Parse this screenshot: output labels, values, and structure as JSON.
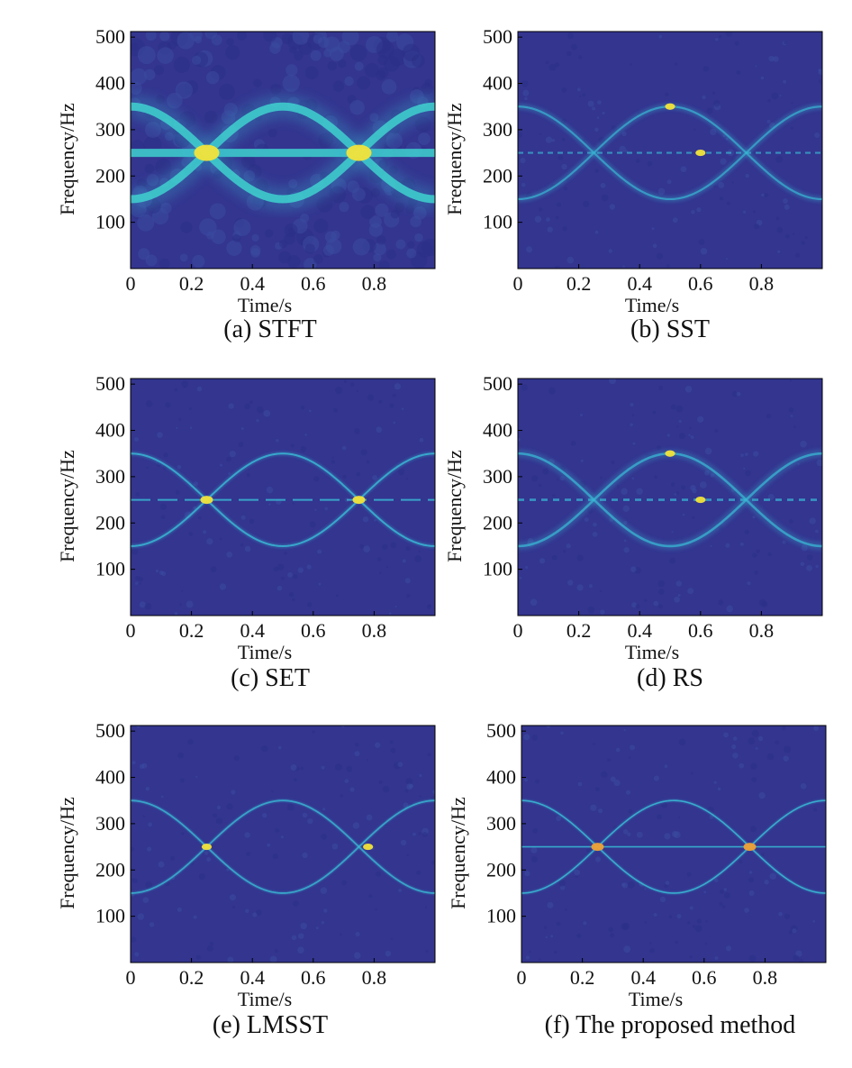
{
  "figure": {
    "panels": [
      {
        "id": "a",
        "caption": "(a) STFT"
      },
      {
        "id": "b",
        "caption": "(b) SST"
      },
      {
        "id": "c",
        "caption": "(c) SET"
      },
      {
        "id": "d",
        "caption": "(d) RS"
      },
      {
        "id": "e",
        "caption": "(e) LMSST"
      },
      {
        "id": "f",
        "caption": "(f) The proposed  method"
      }
    ]
  },
  "colors": {
    "background": "#33358f",
    "ridge": "#39b6d3",
    "ridge_strong": "#3fd2cf",
    "peak": "#f2e33a",
    "peak_orange": "#f0a035"
  },
  "chart_data": [
    {
      "type": "heatmap",
      "title": "(a) STFT",
      "xlabel": "Time/s",
      "ylabel": "Frequency/Hz",
      "xlim": [
        0,
        1
      ],
      "ylim": [
        0,
        512
      ],
      "xticks": [
        0,
        0.2,
        0.4,
        0.6,
        0.8
      ],
      "yticks": [
        100,
        200,
        300,
        400,
        500
      ],
      "xtick_labels": [
        "0",
        "0.2",
        "0.4",
        "0.6",
        "0.8"
      ],
      "ytick_labels": [
        "100",
        "200",
        "300",
        "400",
        "500"
      ],
      "components": [
        {
          "name": "constant",
          "frequency_hz": 250
        },
        {
          "name": "sinusoidal-1",
          "formula": "250 - 100*cos(2*pi*t)"
        },
        {
          "name": "sinusoidal-2",
          "formula": "250 + 100*cos(2*pi*t)"
        }
      ],
      "peaks": [
        {
          "t": 0.25,
          "f": 250
        },
        {
          "t": 0.75,
          "f": 250
        }
      ]
    },
    {
      "type": "heatmap",
      "title": "(b) SST",
      "xlabel": "Time/s",
      "ylabel": "Frequency/Hz",
      "xlim": [
        0,
        1
      ],
      "ylim": [
        0,
        512
      ],
      "xticks": [
        0,
        0.2,
        0.4,
        0.6,
        0.8
      ],
      "yticks": [
        100,
        200,
        300,
        400,
        500
      ],
      "xtick_labels": [
        "0",
        "0.2",
        "0.4",
        "0.6",
        "0.8"
      ],
      "ytick_labels": [
        "100",
        "200",
        "300",
        "400",
        "500"
      ],
      "components": [
        {
          "name": "constant",
          "frequency_hz": 250
        },
        {
          "name": "sinusoidal-1",
          "formula": "250 - 100*cos(2*pi*t)"
        },
        {
          "name": "sinusoidal-2",
          "formula": "250 + 100*cos(2*pi*t)"
        }
      ],
      "peaks": [
        {
          "t": 0.5,
          "f": 350
        },
        {
          "t": 0.6,
          "f": 250
        }
      ]
    },
    {
      "type": "heatmap",
      "title": "(c) SET",
      "xlabel": "Time/s",
      "ylabel": "Frequency/Hz",
      "xlim": [
        0,
        1
      ],
      "ylim": [
        0,
        512
      ],
      "xticks": [
        0,
        0.2,
        0.4,
        0.6,
        0.8
      ],
      "yticks": [
        100,
        200,
        300,
        400,
        500
      ],
      "xtick_labels": [
        "0",
        "0.2",
        "0.4",
        "0.6",
        "0.8"
      ],
      "ytick_labels": [
        "100",
        "200",
        "300",
        "400",
        "500"
      ],
      "components": [
        {
          "name": "constant",
          "frequency_hz": 250
        },
        {
          "name": "sinusoidal-1",
          "formula": "250 - 100*cos(2*pi*t)"
        },
        {
          "name": "sinusoidal-2",
          "formula": "250 + 100*cos(2*pi*t)"
        }
      ],
      "peaks": [
        {
          "t": 0.25,
          "f": 250
        },
        {
          "t": 0.75,
          "f": 250
        }
      ]
    },
    {
      "type": "heatmap",
      "title": "(d) RS",
      "xlabel": "Time/s",
      "ylabel": "Frequency/Hz",
      "xlim": [
        0,
        1
      ],
      "ylim": [
        0,
        512
      ],
      "xticks": [
        0,
        0.2,
        0.4,
        0.6,
        0.8
      ],
      "yticks": [
        100,
        200,
        300,
        400,
        500
      ],
      "xtick_labels": [
        "0",
        "0.2",
        "0.4",
        "0.6",
        "0.8"
      ],
      "ytick_labels": [
        "100",
        "200",
        "300",
        "400",
        "500"
      ],
      "components": [
        {
          "name": "constant",
          "frequency_hz": 250
        },
        {
          "name": "sinusoidal-1",
          "formula": "250 - 100*cos(2*pi*t)"
        },
        {
          "name": "sinusoidal-2",
          "formula": "250 + 100*cos(2*pi*t)"
        }
      ],
      "peaks": [
        {
          "t": 0.5,
          "f": 350
        },
        {
          "t": 0.6,
          "f": 250
        }
      ]
    },
    {
      "type": "heatmap",
      "title": "(e) LMSST",
      "xlabel": "Time/s",
      "ylabel": "Frequency/Hz",
      "xlim": [
        0,
        1
      ],
      "ylim": [
        0,
        512
      ],
      "xticks": [
        0,
        0.2,
        0.4,
        0.6,
        0.8
      ],
      "yticks": [
        100,
        200,
        300,
        400,
        500
      ],
      "xtick_labels": [
        "0",
        "0.2",
        "0.4",
        "0.6",
        "0.8"
      ],
      "ytick_labels": [
        "100",
        "200",
        "300",
        "400",
        "500"
      ],
      "components": [
        {
          "name": "sinusoidal-1",
          "formula": "250 - 100*cos(2*pi*t)"
        },
        {
          "name": "sinusoidal-2",
          "formula": "250 + 100*cos(2*pi*t)"
        }
      ],
      "peaks": [
        {
          "t": 0.25,
          "f": 250
        },
        {
          "t": 0.78,
          "f": 250
        }
      ]
    },
    {
      "type": "heatmap",
      "title": "(f) The proposed  method",
      "xlabel": "Time/s",
      "ylabel": "Frequency/Hz",
      "xlim": [
        0,
        1
      ],
      "ylim": [
        0,
        512
      ],
      "xticks": [
        0,
        0.2,
        0.4,
        0.6,
        0.8
      ],
      "yticks": [
        100,
        200,
        300,
        400,
        500
      ],
      "xtick_labels": [
        "0",
        "0.2",
        "0.4",
        "0.6",
        "0.8"
      ],
      "ytick_labels": [
        "100",
        "200",
        "300",
        "400",
        "500"
      ],
      "components": [
        {
          "name": "constant",
          "frequency_hz": 250
        },
        {
          "name": "sinusoidal-1",
          "formula": "250 - 100*cos(2*pi*t)"
        },
        {
          "name": "sinusoidal-2",
          "formula": "250 + 100*cos(2*pi*t)"
        }
      ],
      "peaks": [
        {
          "t": 0.25,
          "f": 250
        },
        {
          "t": 0.75,
          "f": 250
        }
      ]
    }
  ]
}
